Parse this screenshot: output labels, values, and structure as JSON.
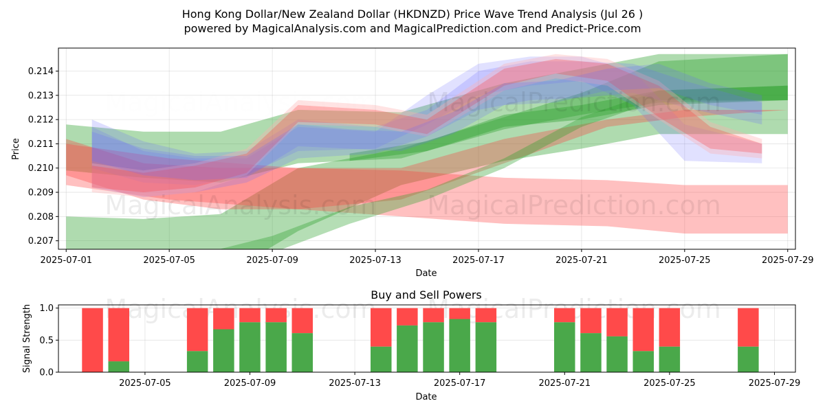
{
  "header": {
    "title_line1": "Hong Kong Dollar/New Zealand Dollar (HKDNZD) Price Wave Trend Analysis (Jul 26 )",
    "title_line2": "powered by MagicalAnalysis.com and MagicalPrediction.com and Predict-Price.com"
  },
  "watermarks": {
    "left": "MagicalAnalysis.com",
    "right": "MagicalPrediction.com"
  },
  "colors": {
    "green": "#2ca02c",
    "red": "#ff3b3b",
    "blue": "#6a6aff",
    "salmon": "#ffb0b0",
    "bar_green": "#4aa84a",
    "bar_red": "#ff4a4a"
  },
  "chart_data": [
    {
      "type": "area",
      "title": "",
      "xlabel": "Date",
      "ylabel": "Price",
      "x_ticks": [
        "2025-07-01",
        "2025-07-05",
        "2025-07-09",
        "2025-07-13",
        "2025-07-17",
        "2025-07-21",
        "2025-07-25",
        "2025-07-29"
      ],
      "y_ticks": [
        "0.207",
        "0.208",
        "0.209",
        "0.210",
        "0.211",
        "0.212",
        "0.213",
        "0.214"
      ],
      "xlim": [
        "2025-06-30.7",
        "2025-07-29.3"
      ],
      "ylim": [
        0.20665,
        0.21495
      ],
      "grid": true,
      "bands": [
        {
          "color": "green",
          "opacity": 0.38,
          "x": [
            "2025-07-01",
            "2025-07-04",
            "2025-07-07",
            "2025-07-10",
            "2025-07-14",
            "2025-07-18",
            "2025-07-21",
            "2025-07-24",
            "2025-07-29"
          ],
          "upper": [
            0.208,
            0.2079,
            0.2081,
            0.21,
            0.2108,
            0.2121,
            0.2131,
            0.2144,
            0.2147
          ],
          "lower": [
            0.206,
            0.2052,
            0.2055,
            0.2074,
            0.2093,
            0.2103,
            0.2108,
            0.2114,
            0.2114
          ]
        },
        {
          "color": "green",
          "opacity": 0.38,
          "x": [
            "2025-07-01",
            "2025-07-04",
            "2025-07-07",
            "2025-07-10",
            "2025-07-14",
            "2025-07-18",
            "2025-07-21",
            "2025-07-24",
            "2025-07-29"
          ],
          "upper": [
            0.2118,
            0.2115,
            0.2115,
            0.2124,
            0.2123,
            0.2135,
            0.2141,
            0.2147,
            0.2147
          ],
          "lower": [
            0.2099,
            0.2096,
            0.2094,
            0.2102,
            0.2104,
            0.2116,
            0.2122,
            0.2127,
            0.2128
          ]
        },
        {
          "color": "red",
          "opacity": 0.32,
          "x": [
            "2025-07-01",
            "2025-07-05",
            "2025-07-10",
            "2025-07-14",
            "2025-07-18",
            "2025-07-22",
            "2025-07-25",
            "2025-07-29"
          ],
          "upper": [
            0.211,
            0.2104,
            0.21,
            0.2099,
            0.2096,
            0.2095,
            0.2093,
            0.2093
          ],
          "lower": [
            0.2093,
            0.2087,
            0.2083,
            0.208,
            0.2077,
            0.2076,
            0.2073,
            0.2073
          ]
        },
        {
          "color": "red",
          "opacity": 0.32,
          "x": [
            "2025-07-01",
            "2025-07-04",
            "2025-07-07",
            "2025-07-10",
            "2025-07-14",
            "2025-07-18",
            "2025-07-22",
            "2025-07-25",
            "2025-07-29"
          ],
          "upper": [
            0.2112,
            0.2102,
            0.21,
            0.21,
            0.21,
            0.2112,
            0.212,
            0.2124,
            0.2124
          ],
          "lower": [
            0.2097,
            0.2087,
            0.2083,
            0.2083,
            0.2087,
            0.2102,
            0.2117,
            0.2121,
            0.2124
          ]
        },
        {
          "color": "green",
          "opacity": 0.35,
          "x": [
            "2025-07-06",
            "2025-07-09",
            "2025-07-12",
            "2025-07-15",
            "2025-07-18",
            "2025-07-21",
            "2025-07-24",
            "2025-07-29"
          ],
          "upper": [
            0.2064,
            0.2072,
            0.2084,
            0.2091,
            0.2104,
            0.2121,
            0.2132,
            0.2134
          ],
          "lower": [
            0.206,
            0.2065,
            0.2077,
            0.2087,
            0.21,
            0.2117,
            0.2128,
            0.2128
          ]
        },
        {
          "color": "green",
          "opacity": 0.4,
          "x": [
            "2025-07-12",
            "2025-07-15",
            "2025-07-18",
            "2025-07-21",
            "2025-07-24",
            "2025-07-29"
          ],
          "upper": [
            0.2106,
            0.2111,
            0.2122,
            0.2126,
            0.2132,
            0.2134
          ],
          "lower": [
            0.2103,
            0.2107,
            0.2117,
            0.212,
            0.2126,
            0.2128
          ]
        },
        {
          "color": "blue",
          "opacity": 0.22,
          "x": [
            "2025-07-02",
            "2025-07-04",
            "2025-07-06",
            "2025-07-08",
            "2025-07-10",
            "2025-07-13",
            "2025-07-15",
            "2025-07-17",
            "2025-07-19",
            "2025-07-21",
            "2025-07-23",
            "2025-07-25",
            "2025-07-28"
          ],
          "upper": [
            0.212,
            0.2111,
            0.2106,
            0.2107,
            0.212,
            0.2117,
            0.2124,
            0.214,
            0.2144,
            0.2144,
            0.2143,
            0.2136,
            0.2127
          ],
          "lower": [
            0.2092,
            0.2088,
            0.209,
            0.2094,
            0.2104,
            0.2106,
            0.2113,
            0.2124,
            0.2128,
            0.2129,
            0.2131,
            0.2125,
            0.2118
          ]
        },
        {
          "color": "blue",
          "opacity": 0.2,
          "x": [
            "2025-07-02",
            "2025-07-04",
            "2025-07-06",
            "2025-07-08",
            "2025-07-10",
            "2025-07-13",
            "2025-07-15",
            "2025-07-17",
            "2025-07-19",
            "2025-07-21",
            "2025-07-23",
            "2025-07-25",
            "2025-07-28"
          ],
          "upper": [
            0.2117,
            0.2107,
            0.2104,
            0.2104,
            0.2117,
            0.2115,
            0.213,
            0.2143,
            0.2146,
            0.2146,
            0.214,
            0.2118,
            0.211
          ],
          "lower": [
            0.21,
            0.2094,
            0.2093,
            0.2097,
            0.2107,
            0.2108,
            0.2118,
            0.213,
            0.2134,
            0.2136,
            0.2126,
            0.2103,
            0.2102
          ]
        },
        {
          "color": "salmon",
          "opacity": 0.35,
          "x": [
            "2025-07-02",
            "2025-07-04",
            "2025-07-06",
            "2025-07-08",
            "2025-07-10",
            "2025-07-13",
            "2025-07-15",
            "2025-07-18",
            "2025-07-20",
            "2025-07-22",
            "2025-07-24",
            "2025-07-26",
            "2025-07-28"
          ],
          "upper": [
            0.2102,
            0.2099,
            0.2102,
            0.2108,
            0.2128,
            0.2126,
            0.2122,
            0.2143,
            0.2147,
            0.2145,
            0.2136,
            0.2119,
            0.2112
          ],
          "lower": [
            0.209,
            0.2088,
            0.209,
            0.2097,
            0.2118,
            0.2117,
            0.2113,
            0.2132,
            0.2137,
            0.2134,
            0.212,
            0.2106,
            0.2104
          ]
        },
        {
          "color": "red",
          "opacity": 0.28,
          "x": [
            "2025-07-02",
            "2025-07-04",
            "2025-07-06",
            "2025-07-08",
            "2025-07-10",
            "2025-07-13",
            "2025-07-15",
            "2025-07-18",
            "2025-07-20",
            "2025-07-22",
            "2025-07-24",
            "2025-07-26",
            "2025-07-28"
          ],
          "upper": [
            0.2101,
            0.2098,
            0.2101,
            0.2106,
            0.2126,
            0.2124,
            0.212,
            0.2141,
            0.2145,
            0.2143,
            0.2134,
            0.2117,
            0.211
          ],
          "lower": [
            0.2092,
            0.209,
            0.2092,
            0.2098,
            0.2119,
            0.2118,
            0.2114,
            0.2134,
            0.2139,
            0.2136,
            0.2121,
            0.2108,
            0.2106
          ]
        },
        {
          "color": "blue",
          "opacity": 0.22,
          "x": [
            "2025-07-02",
            "2025-07-04",
            "2025-07-06",
            "2025-07-08",
            "2025-07-10",
            "2025-07-12",
            "2025-07-14",
            "2025-07-16",
            "2025-07-18",
            "2025-07-20",
            "2025-07-22",
            "2025-07-24",
            "2025-07-26",
            "2025-07-28"
          ],
          "upper": [
            0.2115,
            0.2108,
            0.2105,
            0.2105,
            0.2118,
            0.2116,
            0.2115,
            0.2123,
            0.2135,
            0.2136,
            0.2141,
            0.2143,
            0.2135,
            0.213
          ],
          "lower": [
            0.2103,
            0.2097,
            0.2095,
            0.2096,
            0.2109,
            0.2108,
            0.2107,
            0.2114,
            0.2126,
            0.2127,
            0.2132,
            0.2133,
            0.2126,
            0.2122
          ]
        }
      ]
    },
    {
      "type": "bar",
      "title": "Buy and Sell Powers",
      "xlabel": "Date",
      "ylabel": "Signal Strength",
      "x_ticks": [
        "2025-07-05",
        "2025-07-09",
        "2025-07-13",
        "2025-07-17",
        "2025-07-21",
        "2025-07-25",
        "2025-07-29"
      ],
      "y_ticks": [
        "0.0",
        "0.5",
        "1.0"
      ],
      "xlim": [
        "2025-07-01.7",
        "2025-07-29.8"
      ],
      "ylim": [
        0,
        1.05
      ],
      "grid": true,
      "series": [
        {
          "name": "",
          "color": "bar_green",
          "values": [
            0.0,
            0.17,
            0.33,
            0.67,
            0.78,
            0.78,
            0.61,
            0.4,
            0.73,
            0.78,
            0.83,
            0.78,
            0.78,
            0.61,
            0.56,
            0.33,
            0.4,
            0.4
          ]
        },
        {
          "name": "",
          "color": "bar_red",
          "values": [
            1.0,
            0.83,
            0.67,
            0.33,
            0.22,
            0.22,
            0.39,
            0.6,
            0.27,
            0.22,
            0.17,
            0.22,
            0.22,
            0.39,
            0.44,
            0.67,
            0.6,
            0.6
          ]
        }
      ],
      "categories": [
        "2025-07-03",
        "2025-07-04",
        "2025-07-07",
        "2025-07-08",
        "2025-07-09",
        "2025-07-10",
        "2025-07-11",
        "2025-07-14",
        "2025-07-15",
        "2025-07-16",
        "2025-07-17",
        "2025-07-18",
        "2025-07-21",
        "2025-07-22",
        "2025-07-23",
        "2025-07-24",
        "2025-07-25",
        "2025-07-28"
      ]
    }
  ]
}
